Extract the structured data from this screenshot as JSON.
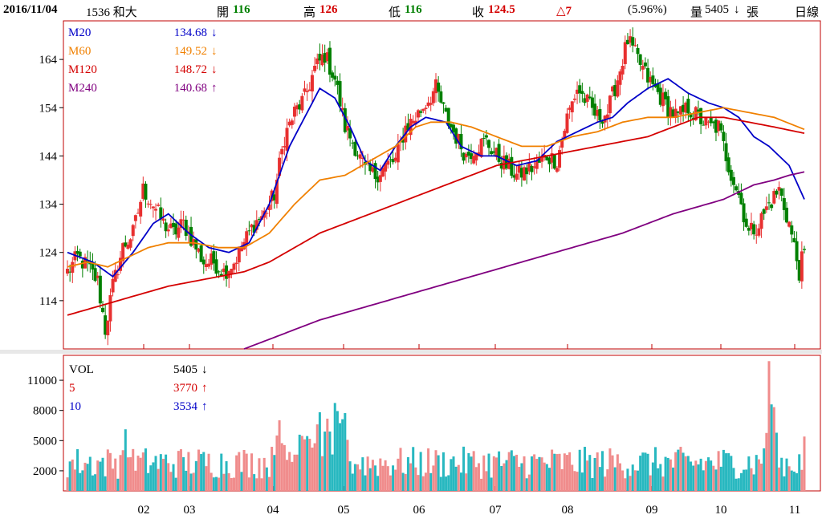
{
  "header": {
    "date": "2016/11/04",
    "stock": "1536 和大",
    "open_label": "開",
    "open": "116",
    "high_label": "高",
    "high": "126",
    "low_label": "低",
    "low": "116",
    "close_label": "收",
    "close": "124.5",
    "change": "△7",
    "change_pct": "(5.96%)",
    "volume_label": "量",
    "volume": "5405",
    "volume_unit": "張",
    "period": "日線"
  },
  "colors": {
    "up": "#e83030",
    "down": "#008000",
    "vol_up": "#f08c8c",
    "vol_down": "#28b8c0",
    "ma20": "#0000c8",
    "ma60": "#f08000",
    "ma120": "#d40000",
    "ma240": "#800080",
    "frame": "#c00000"
  },
  "chart_data": [
    {
      "type": "candlestick",
      "ylim": [
        104,
        172
      ],
      "yticks": [
        "114",
        "124",
        "134",
        "144",
        "154",
        "164"
      ],
      "legend": [
        {
          "name": "M20",
          "value": "134.68",
          "arrow": "↓"
        },
        {
          "name": "M60",
          "value": "149.52",
          "arrow": "↓"
        },
        {
          "name": "M120",
          "value": "148.72",
          "arrow": "↓"
        },
        {
          "name": "M240",
          "value": "140.68",
          "arrow": "↑"
        }
      ],
      "month_ticks": [
        "02",
        "03",
        "04",
        "05",
        "06",
        "07",
        "08",
        "09",
        "10",
        "11"
      ],
      "close_anchors": [
        [
          0,
          120
        ],
        [
          4,
          123
        ],
        [
          8,
          121
        ],
        [
          12,
          118
        ],
        [
          15,
          108
        ],
        [
          18,
          117
        ],
        [
          22,
          125
        ],
        [
          26,
          128
        ],
        [
          30,
          137
        ],
        [
          34,
          134
        ],
        [
          38,
          130
        ],
        [
          42,
          128
        ],
        [
          46,
          130
        ],
        [
          50,
          126
        ],
        [
          54,
          122
        ],
        [
          58,
          122
        ],
        [
          62,
          120
        ],
        [
          66,
          122
        ],
        [
          70,
          126
        ],
        [
          74,
          130
        ],
        [
          78,
          132
        ],
        [
          82,
          136
        ],
        [
          86,
          148
        ],
        [
          90,
          153
        ],
        [
          94,
          156
        ],
        [
          98,
          162
        ],
        [
          102,
          165
        ],
        [
          106,
          160
        ],
        [
          110,
          150
        ],
        [
          114,
          146
        ],
        [
          118,
          141
        ],
        [
          122,
          140
        ],
        [
          126,
          142
        ],
        [
          130,
          143
        ],
        [
          134,
          150
        ],
        [
          138,
          152
        ],
        [
          142,
          155
        ],
        [
          146,
          158
        ],
        [
          150,
          152
        ],
        [
          154,
          148
        ],
        [
          158,
          144
        ],
        [
          162,
          146
        ],
        [
          166,
          147
        ],
        [
          170,
          144
        ],
        [
          174,
          142
        ],
        [
          178,
          140
        ],
        [
          182,
          141
        ],
        [
          186,
          142
        ],
        [
          190,
          144
        ],
        [
          194,
          143
        ],
        [
          198,
          152
        ],
        [
          202,
          158
        ],
        [
          206,
          155
        ],
        [
          210,
          152
        ],
        [
          214,
          153
        ],
        [
          218,
          160
        ],
        [
          222,
          168
        ],
        [
          226,
          164
        ],
        [
          230,
          160
        ],
        [
          234,
          157
        ],
        [
          238,
          154
        ],
        [
          242,
          152
        ],
        [
          246,
          154
        ],
        [
          250,
          152
        ],
        [
          254,
          150
        ],
        [
          258,
          150
        ],
        [
          262,
          142
        ],
        [
          266,
          136
        ],
        [
          270,
          128
        ],
        [
          274,
          130
        ],
        [
          278,
          134
        ],
        [
          282,
          137
        ],
        [
          286,
          130
        ],
        [
          290,
          120
        ],
        [
          292,
          124.5
        ]
      ],
      "ma_anchors": {
        "M20": [
          [
            0,
            124
          ],
          [
            10,
            122
          ],
          [
            18,
            119
          ],
          [
            26,
            124
          ],
          [
            34,
            130
          ],
          [
            40,
            132
          ],
          [
            48,
            128
          ],
          [
            56,
            125
          ],
          [
            64,
            124
          ],
          [
            72,
            126
          ],
          [
            80,
            134
          ],
          [
            88,
            146
          ],
          [
            96,
            154
          ],
          [
            100,
            158
          ],
          [
            106,
            156
          ],
          [
            112,
            150
          ],
          [
            118,
            143
          ],
          [
            124,
            141
          ],
          [
            130,
            146
          ],
          [
            136,
            150
          ],
          [
            142,
            152
          ],
          [
            150,
            151
          ],
          [
            156,
            146
          ],
          [
            164,
            144
          ],
          [
            170,
            144
          ],
          [
            178,
            142
          ],
          [
            186,
            143
          ],
          [
            194,
            147
          ],
          [
            202,
            149
          ],
          [
            210,
            151
          ],
          [
            216,
            152
          ],
          [
            222,
            155
          ],
          [
            230,
            158
          ],
          [
            238,
            160
          ],
          [
            246,
            157
          ],
          [
            254,
            155
          ],
          [
            260,
            154
          ],
          [
            266,
            152
          ],
          [
            272,
            148
          ],
          [
            278,
            146
          ],
          [
            286,
            142
          ],
          [
            292,
            135
          ]
        ],
        "M60": [
          [
            0,
            121
          ],
          [
            8,
            122
          ],
          [
            16,
            121
          ],
          [
            24,
            123
          ],
          [
            32,
            125
          ],
          [
            40,
            126
          ],
          [
            50,
            126
          ],
          [
            60,
            125
          ],
          [
            70,
            125
          ],
          [
            80,
            128
          ],
          [
            90,
            134
          ],
          [
            100,
            139
          ],
          [
            110,
            140
          ],
          [
            120,
            143
          ],
          [
            130,
            146
          ],
          [
            138,
            150
          ],
          [
            144,
            151
          ],
          [
            152,
            151
          ],
          [
            160,
            150
          ],
          [
            170,
            148
          ],
          [
            180,
            146
          ],
          [
            190,
            146
          ],
          [
            200,
            148
          ],
          [
            210,
            149
          ],
          [
            220,
            151
          ],
          [
            230,
            152
          ],
          [
            240,
            152
          ],
          [
            250,
            153
          ],
          [
            260,
            154
          ],
          [
            270,
            153
          ],
          [
            280,
            152
          ],
          [
            292,
            149.5
          ]
        ],
        "M120": [
          [
            0,
            111
          ],
          [
            20,
            114
          ],
          [
            40,
            117
          ],
          [
            60,
            119
          ],
          [
            70,
            120
          ],
          [
            80,
            122
          ],
          [
            90,
            125
          ],
          [
            100,
            128
          ],
          [
            110,
            130
          ],
          [
            120,
            132
          ],
          [
            130,
            134
          ],
          [
            140,
            136
          ],
          [
            150,
            138
          ],
          [
            160,
            140
          ],
          [
            170,
            142
          ],
          [
            180,
            143
          ],
          [
            190,
            144
          ],
          [
            200,
            145
          ],
          [
            210,
            146
          ],
          [
            220,
            147
          ],
          [
            230,
            148
          ],
          [
            240,
            150
          ],
          [
            250,
            152
          ],
          [
            260,
            152
          ],
          [
            270,
            151
          ],
          [
            280,
            150
          ],
          [
            292,
            148.7
          ]
        ],
        "M240": [
          [
            60,
            102
          ],
          [
            80,
            106
          ],
          [
            100,
            110
          ],
          [
            120,
            113
          ],
          [
            140,
            116
          ],
          [
            160,
            119
          ],
          [
            180,
            122
          ],
          [
            200,
            125
          ],
          [
            220,
            128
          ],
          [
            240,
            132
          ],
          [
            260,
            135
          ],
          [
            272,
            138
          ],
          [
            280,
            139
          ],
          [
            286,
            140
          ],
          [
            292,
            140.7
          ]
        ]
      }
    },
    {
      "type": "bar",
      "series": [
        {
          "name": "VOL",
          "value": "5405"
        }
      ],
      "ylim": [
        0,
        13000
      ],
      "yticks": [
        "2000",
        "5000",
        "8000",
        "11000"
      ],
      "legend": [
        {
          "name": "VOL",
          "value": "5405",
          "arrow": "↓"
        },
        {
          "name": "5",
          "value": "3770",
          "arrow": "↑"
        },
        {
          "name": "10",
          "value": "3534",
          "arrow": "↑"
        }
      ],
      "values_note_free": true
    }
  ]
}
